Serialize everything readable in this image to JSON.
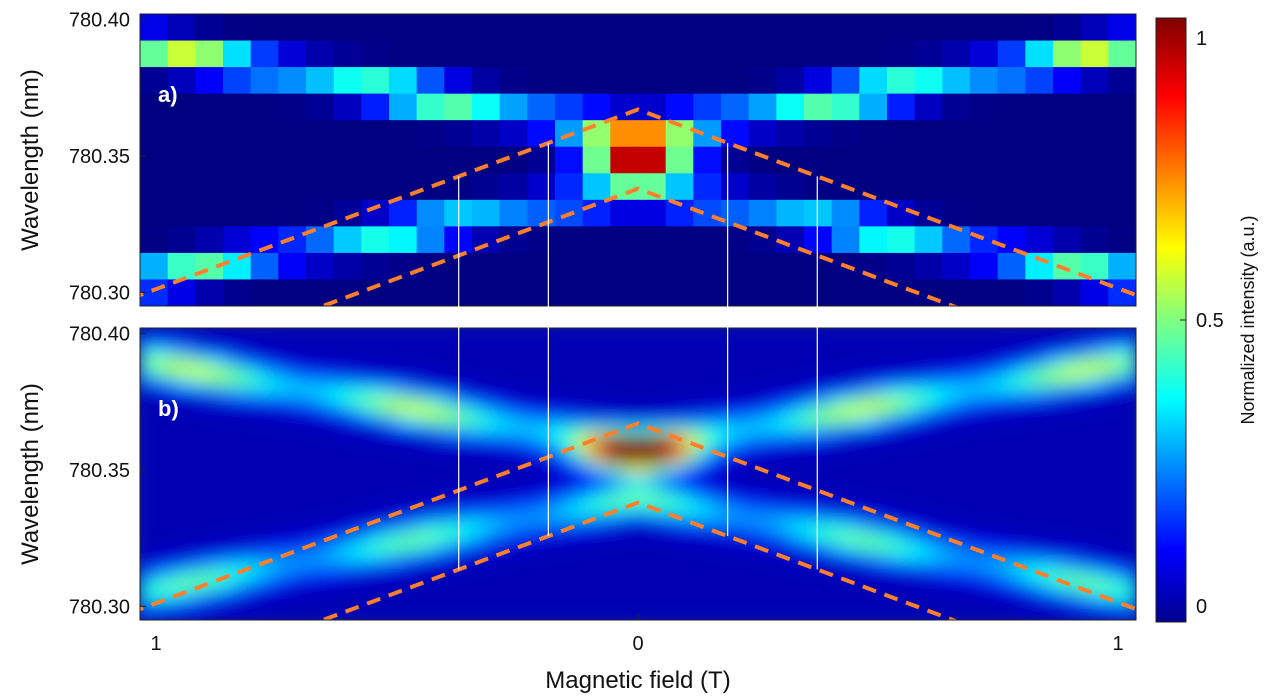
{
  "chart_data": [
    {
      "type": "heatmap",
      "panel_label": "a)",
      "xlabel": "",
      "ylabel": "Wavelength (nm)",
      "xlim": [
        -1,
        1
      ],
      "ylim": [
        780.295,
        780.402
      ],
      "yticks": [
        "780.40",
        "780.35",
        "780.30"
      ],
      "ytick_values": [
        780.4,
        780.35,
        780.3
      ],
      "grid": "pixelated",
      "columns": 36,
      "rows": 11,
      "colormap": "jet",
      "overlay_dashed_color": "#ff7f2a",
      "guide_x_values": [
        -0.36,
        -0.18,
        0.18,
        0.36
      ],
      "features": {
        "branches": [
          {
            "name": "upper-outer",
            "from": [
              -1,
              780.39
            ],
            "to": [
              0,
              780.358
            ]
          },
          {
            "name": "lower-outer",
            "from": [
              -1,
              780.305
            ],
            "to": [
              0,
              780.338
            ]
          }
        ],
        "peak": {
          "x": 0,
          "y": 780.35,
          "intensity": 1.0
        }
      }
    },
    {
      "type": "heatmap",
      "panel_label": "b)",
      "xlabel": "Magnetic field (T)",
      "ylabel": "Wavelength (nm)",
      "xlim": [
        -1,
        1
      ],
      "ylim": [
        780.295,
        780.402
      ],
      "xticks": [
        "1",
        "0",
        "1"
      ],
      "xtick_values": [
        -1,
        0,
        1
      ],
      "yticks": [
        "780.40",
        "780.35",
        "780.30"
      ],
      "ytick_values": [
        780.4,
        780.35,
        780.3
      ],
      "grid": "smooth",
      "colormap": "jet",
      "overlay_dashed_color": "#ff7f2a",
      "guide_x_values": [
        -0.36,
        -0.18,
        0.18,
        0.36
      ],
      "features": {
        "branches": [
          {
            "name": "upper-outer",
            "from": [
              -1,
              780.39
            ],
            "to": [
              0,
              780.358
            ]
          },
          {
            "name": "lower-outer",
            "from": [
              -1,
              780.305
            ],
            "to": [
              0,
              780.34
            ]
          }
        ],
        "peak": {
          "x": 0,
          "y": 780.356,
          "intensity": 1.0
        }
      }
    }
  ],
  "dashed_lines": {
    "upper_apex": 780.367,
    "lower_apex": 780.338,
    "slope_nm_per_T": 0.068
  },
  "colorbar": {
    "label": "Normalized intensity (a.u.)",
    "ticks": [
      "1",
      "0.5",
      "0"
    ],
    "tick_values": [
      1,
      0.5,
      0
    ],
    "range": [
      0,
      1
    ]
  }
}
